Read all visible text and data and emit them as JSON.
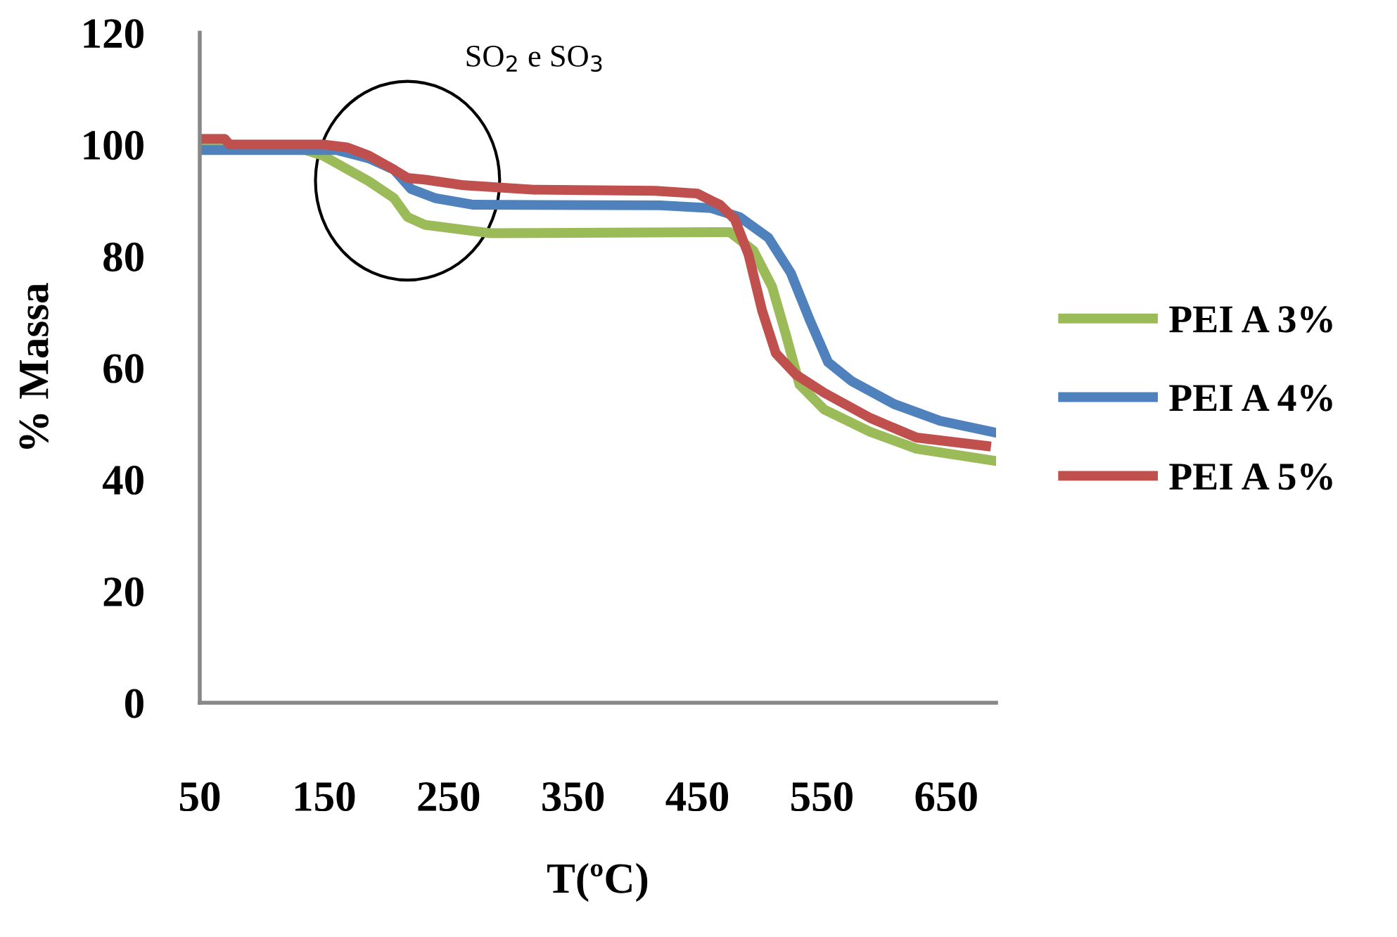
{
  "chart_data": {
    "type": "line",
    "xlabel": "T(ºC)",
    "ylabel": "% Massa",
    "xlim": [
      50,
      690
    ],
    "xticks": [
      50,
      150,
      250,
      350,
      450,
      550,
      650
    ],
    "ylim": [
      0,
      120
    ],
    "yticks": [
      0,
      20,
      40,
      60,
      80,
      100,
      120
    ],
    "grid": false,
    "legend": "right",
    "marker": "none",
    "line_style": "solid",
    "annotations": [
      "SO$_{2}$ e SO$_{3}$"
    ],
    "series": [
      {
        "name": "PEI A 3%",
        "color": "#9bbb59",
        "x": [
          50,
          135,
          149,
          186,
          206,
          217,
          231,
          284,
          476,
          495,
          510,
          521,
          532,
          552,
          589,
          626,
          687
        ],
        "values": [
          99.5,
          99,
          98,
          93.4,
          90.4,
          87,
          85.6,
          84.1,
          84.3,
          81,
          74.5,
          66,
          57,
          52.5,
          48.5,
          45.5,
          43.4
        ]
      },
      {
        "name": "PEI A 4%",
        "color": "#4f81bd",
        "x": [
          50,
          160,
          186,
          206,
          220,
          239,
          270,
          420,
          461,
          484,
          507,
          525,
          540,
          555,
          574,
          608,
          645,
          687
        ],
        "values": [
          99,
          99,
          97.5,
          95.5,
          92,
          90.4,
          89.2,
          89.1,
          88.6,
          87,
          83.3,
          77,
          68.7,
          61,
          57.6,
          53.5,
          50.5,
          48.5
        ]
      },
      {
        "name": "PEI A 5%",
        "color": "#c0504d",
        "x": [
          50,
          70,
          74,
          149,
          168,
          186,
          206,
          217,
          231,
          262,
          318,
          416,
          450,
          468,
          480,
          491,
          502,
          513,
          529,
          552,
          589,
          626,
          682
        ],
        "values": [
          101,
          101,
          100,
          100,
          99.5,
          98,
          95.5,
          94,
          93.7,
          92.7,
          91.9,
          91.7,
          91.2,
          89.2,
          86.6,
          80.3,
          70.2,
          62.6,
          58.8,
          55.5,
          51,
          47.5,
          46
        ]
      }
    ]
  }
}
